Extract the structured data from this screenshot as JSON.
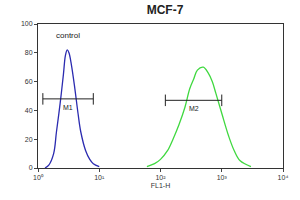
{
  "chart_data": {
    "type": "histogram_overlay",
    "title": "MCF-7",
    "x_label": "FL1-H",
    "log": "x",
    "grid": false,
    "xlim": [
      1,
      10000
    ],
    "xticks": [
      {
        "value": 1,
        "label": "10⁰"
      },
      {
        "value": 10,
        "label": "10¹"
      },
      {
        "value": 100,
        "label": "10²"
      },
      {
        "value": 1000,
        "label": "10³"
      },
      {
        "value": 10000,
        "label": "10⁴"
      }
    ],
    "ylim": [
      0,
      100
    ],
    "yticks": [
      0,
      20,
      40,
      60,
      80,
      100
    ],
    "series": [
      {
        "color": "#2b2bb0",
        "x": [
          1.3,
          1.5,
          1.8,
          2.0,
          2.3,
          2.6,
          2.8,
          3.0,
          3.2,
          3.5,
          4,
          4.5,
          5,
          6,
          7,
          8,
          10
        ],
        "values": [
          0,
          2,
          10,
          25,
          45,
          65,
          78,
          82,
          80,
          72,
          55,
          38,
          25,
          12,
          6,
          3,
          1
        ]
      },
      {
        "color": "#3fd83f",
        "x": [
          60,
          80,
          100,
          130,
          160,
          200,
          250,
          300,
          350,
          400,
          500,
          600,
          700,
          800,
          1000,
          1300,
          1600,
          2000,
          3000
        ],
        "values": [
          1,
          3,
          6,
          12,
          20,
          30,
          42,
          55,
          62,
          68,
          70,
          66,
          60,
          52,
          38,
          22,
          12,
          5,
          1
        ]
      }
    ],
    "gates": [
      {
        "label": "M1",
        "x": [
          1.2,
          8
        ],
        "y": 48
      },
      {
        "label": "M2",
        "x": [
          120,
          1000
        ],
        "y": 47
      }
    ],
    "annotations": [
      {
        "text": "control",
        "x": 1.8,
        "y": 92
      }
    ]
  }
}
